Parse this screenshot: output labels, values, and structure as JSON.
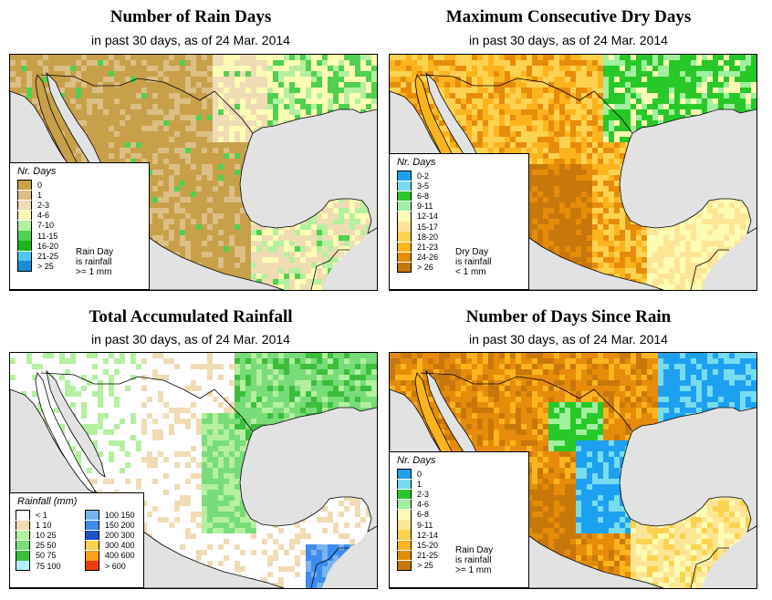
{
  "panels": [
    {
      "id": "rain-days",
      "title": "Number of Rain Days",
      "subtitle": "in past 30 days, as of  24 Mar. 2014",
      "legend": {
        "title": "Nr. Days",
        "items": [
          {
            "label": "0",
            "color": "#c8a04a"
          },
          {
            "label": "1",
            "color": "#dcbf85"
          },
          {
            "label": "2-3",
            "color": "#f0dcb4"
          },
          {
            "label": "4-6",
            "color": "#fcfcb4"
          },
          {
            "label": "7-10",
            "color": "#b4f0a0"
          },
          {
            "label": "11-15",
            "color": "#50d050"
          },
          {
            "label": "16-20",
            "color": "#1eb41e"
          },
          {
            "label": "21-25",
            "color": "#50c8f0"
          },
          {
            "label": "> 25",
            "color": "#1e8cd2"
          }
        ],
        "note": [
          "Rain Day",
          "is rainfall",
          ">= 1 mm"
        ]
      }
    },
    {
      "id": "dry-days",
      "title": "Maximum Consecutive Dry Days",
      "subtitle": "in past 30 days, as of  24 Mar. 2014",
      "legend": {
        "title": "Nr. Days",
        "items": [
          {
            "label": "0-2",
            "color": "#1ea0f0"
          },
          {
            "label": "3-5",
            "color": "#78dcf0"
          },
          {
            "label": "6-8",
            "color": "#28c828"
          },
          {
            "label": "9-11",
            "color": "#a0f0a0"
          },
          {
            "label": "12-14",
            "color": "#fcfcb4"
          },
          {
            "label": "15-17",
            "color": "#fce696"
          },
          {
            "label": "18-20",
            "color": "#fcd250"
          },
          {
            "label": "21-23",
            "color": "#fcb41e"
          },
          {
            "label": "24-26",
            "color": "#e68c0a"
          },
          {
            "label": "> 26",
            "color": "#c8780a"
          }
        ],
        "note": [
          "Dry Day",
          "is rainfall",
          "< 1 mm"
        ]
      }
    },
    {
      "id": "total-rain",
      "title": "Total Accumulated Rainfall",
      "subtitle": "in past 30 days, as of  24 Mar. 2014",
      "legend": {
        "title": "Rainfall (mm)",
        "left": [
          {
            "label": "< 1",
            "color": "#ffffff"
          },
          {
            "label": "1   10",
            "color": "#f0dcb4"
          },
          {
            "label": "10   25",
            "color": "#b4f0a0"
          },
          {
            "label": "25   50",
            "color": "#78dc78"
          },
          {
            "label": "50   75",
            "color": "#3cbe3c"
          },
          {
            "label": "75   100",
            "color": "#b4f0fc"
          }
        ],
        "right": [
          {
            "label": "100   150",
            "color": "#78b4f0"
          },
          {
            "label": "150   200",
            "color": "#3c8cf0"
          },
          {
            "label": "200   300",
            "color": "#1e50c8"
          },
          {
            "label": "300   400",
            "color": "#fcd250"
          },
          {
            "label": "400   600",
            "color": "#fca01e"
          },
          {
            "label": "> 600",
            "color": "#f03c0a"
          }
        ]
      }
    },
    {
      "id": "days-since-rain",
      "title": "Number of Days Since Rain",
      "subtitle": "in past 30 days, as of  24 Mar. 2014",
      "legend": {
        "title": "Nr. Days",
        "items": [
          {
            "label": "0",
            "color": "#1ea0f0"
          },
          {
            "label": "1",
            "color": "#78dcf0"
          },
          {
            "label": "2-3",
            "color": "#28c828"
          },
          {
            "label": "4-6",
            "color": "#a0f0a0"
          },
          {
            "label": "6-8",
            "color": "#fcfcb4"
          },
          {
            "label": "9-11",
            "color": "#fce696"
          },
          {
            "label": "12-14",
            "color": "#fcd250"
          },
          {
            "label": "15-20",
            "color": "#fcb41e"
          },
          {
            "label": "21-25",
            "color": "#e68c0a"
          },
          {
            "label": "> 25",
            "color": "#c8780a"
          }
        ],
        "note": [
          "Rain Day",
          "is rainfall",
          ">= 1 mm"
        ]
      }
    }
  ],
  "colors": {
    "ocean": "#e2e2e2",
    "border": "#000000"
  }
}
